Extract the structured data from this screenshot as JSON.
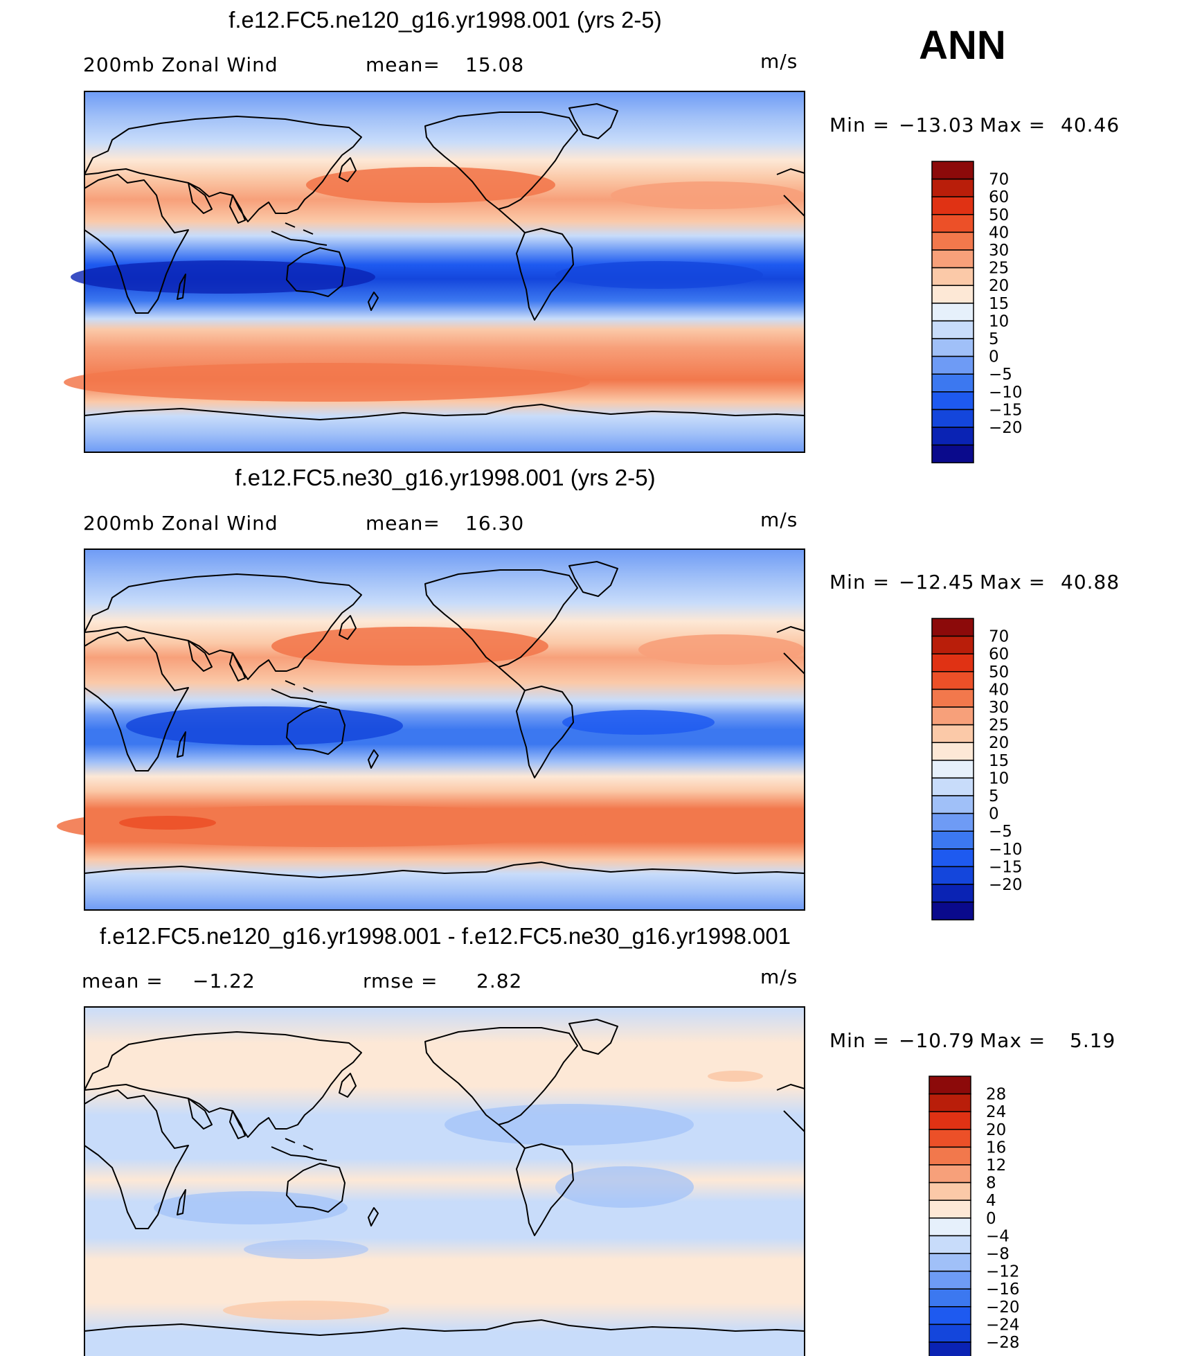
{
  "header": {
    "season": "ANN"
  },
  "units": "m/s",
  "colors": {
    "levels_abs": [
      "#0a0a8c",
      "#0a23b4",
      "#1446dc",
      "#1e5af0",
      "#3c78f0",
      "#6e9bf5",
      "#a0c0f8",
      "#c8dcfa",
      "#e6f0fb",
      "#fde8d6",
      "#fbc9a8",
      "#f7a07a",
      "#f2784c",
      "#ec5028",
      "#e03214",
      "#b91e0a",
      "#8c0a0a"
    ],
    "land_outline": "#000000"
  },
  "panels": [
    {
      "id": "ne120",
      "title": "f.e12.FC5.ne120_g16.yr1998.001 (yrs 2-5)",
      "left_label": "200mb  Zonal  Wind",
      "stat_label": "mean=",
      "stat_value": "15.08",
      "units": "m/s",
      "min_label": "Min  =",
      "min_value": "−13.03",
      "max_label": "Max  =",
      "max_value": "40.46",
      "colorbar_labels": [
        "70",
        "60",
        "50",
        "40",
        "30",
        "25",
        "20",
        "15",
        "10",
        "5",
        "0",
        "−5",
        "−10",
        "−15",
        "−20"
      ],
      "field_mean": 15.08
    },
    {
      "id": "ne30",
      "title": "f.e12.FC5.ne30_g16.yr1998.001 (yrs 2-5)",
      "left_label": "200mb  Zonal  Wind",
      "stat_label": "mean=",
      "stat_value": "16.30",
      "units": "m/s",
      "min_label": "Min  =",
      "min_value": "−12.45",
      "max_label": "Max  =",
      "max_value": "40.88",
      "colorbar_labels": [
        "70",
        "60",
        "50",
        "40",
        "30",
        "25",
        "20",
        "15",
        "10",
        "5",
        "0",
        "−5",
        "−10",
        "−15",
        "−20"
      ],
      "field_mean": 16.3
    },
    {
      "id": "diff",
      "title": "f.e12.FC5.ne120_g16.yr1998.001 - f.e12.FC5.ne30_g16.yr1998.001",
      "left_label": "mean  =",
      "left_value": "−1.22",
      "stat_label": "rmse  =",
      "stat_value": "2.82",
      "units": "m/s",
      "min_label": "Min  =",
      "min_value": "−10.79",
      "max_label": "Max  =",
      "max_value": "5.19",
      "colorbar_labels": [
        "28",
        "24",
        "20",
        "16",
        "12",
        "8",
        "4",
        "0",
        "−4",
        "−8",
        "−12",
        "−16",
        "−20",
        "−24",
        "−28"
      ],
      "field_mean": -1.22,
      "field_rmse": 2.82
    }
  ]
}
